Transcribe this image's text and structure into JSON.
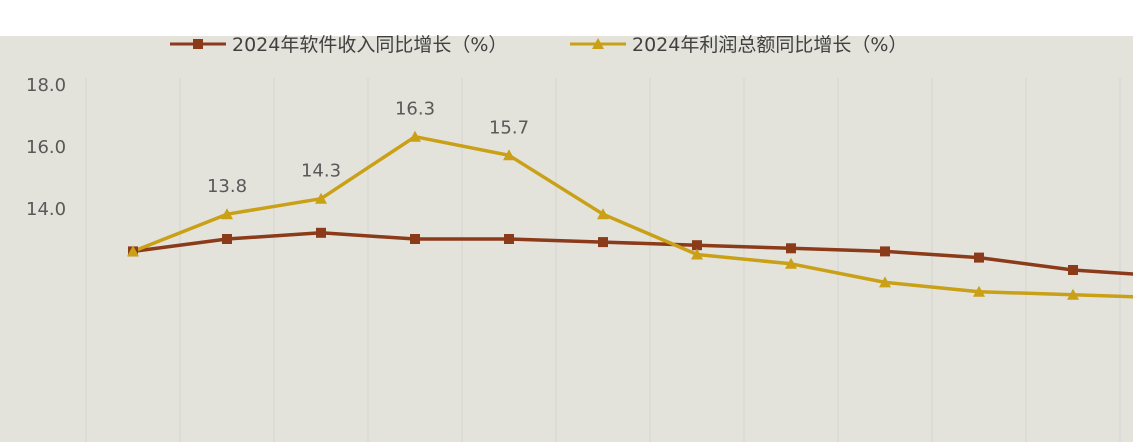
{
  "chart_data": {
    "type": "line",
    "title": "",
    "xlabel": "",
    "ylabel": "",
    "ylim": [
      12.0,
      18.0
    ],
    "y_ticks": [
      "18.0",
      "16.0",
      "14.0"
    ],
    "grid": true,
    "legend_position": "top",
    "x": [
      1,
      2,
      3,
      4,
      5,
      6,
      7,
      8,
      9,
      10,
      11,
      12
    ],
    "series": [
      {
        "name": "2024年软件收入同比增长（%）",
        "color": "#8b3a1a",
        "marker": "square",
        "values": [
          12.6,
          13.0,
          13.2,
          13.0,
          13.0,
          12.9,
          12.8,
          12.7,
          12.6,
          12.4,
          12.0,
          11.8
        ]
      },
      {
        "name": "2024年利润总额同比增长（%）",
        "color": "#c9a016",
        "marker": "triangle",
        "values": [
          12.6,
          13.8,
          14.3,
          16.3,
          15.7,
          13.8,
          12.5,
          12.2,
          11.6,
          11.3,
          11.2,
          11.1
        ]
      }
    ],
    "data_labels": [
      {
        "series": 1,
        "index": 1,
        "text": "13.8"
      },
      {
        "series": 1,
        "index": 2,
        "text": "14.3"
      },
      {
        "series": 1,
        "index": 3,
        "text": "16.3"
      },
      {
        "series": 1,
        "index": 4,
        "text": "15.7"
      }
    ]
  },
  "colors": {
    "plot_background": "#e3e3dc",
    "gridline": "#d6d6d0",
    "tick_label": "#595959",
    "legend_text": "#404040",
    "data_label": "#595959"
  }
}
